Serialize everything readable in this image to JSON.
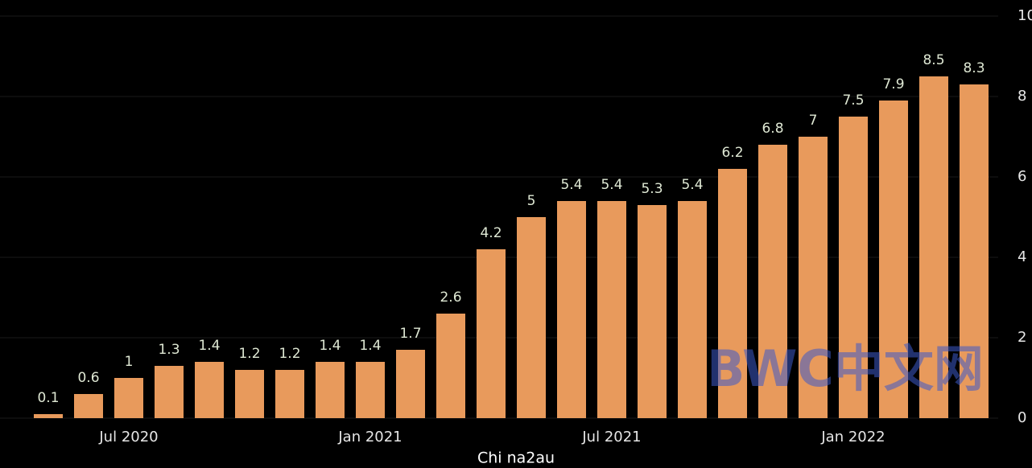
{
  "chart_data": {
    "type": "bar",
    "categories": [
      null,
      null,
      "Jul 2020",
      null,
      null,
      null,
      null,
      null,
      "Jan 2021",
      null,
      null,
      null,
      null,
      null,
      "Jul 2021",
      null,
      null,
      null,
      null,
      null,
      "Jan 2022",
      null,
      null,
      null
    ],
    "values": [
      0.1,
      0.6,
      1,
      1.3,
      1.4,
      1.2,
      1.2,
      1.4,
      1.4,
      1.7,
      2.6,
      4.2,
      5,
      5.4,
      5.4,
      5.3,
      5.4,
      6.2,
      6.8,
      7,
      7.5,
      7.9,
      8.5,
      8.3
    ],
    "color": "#e89a5c",
    "ylim": [
      0,
      10
    ],
    "yticks": [
      0,
      2,
      4,
      6,
      8,
      10
    ],
    "grid": true,
    "annotations": [
      "BWC中文网",
      "Chi na2au"
    ]
  }
}
